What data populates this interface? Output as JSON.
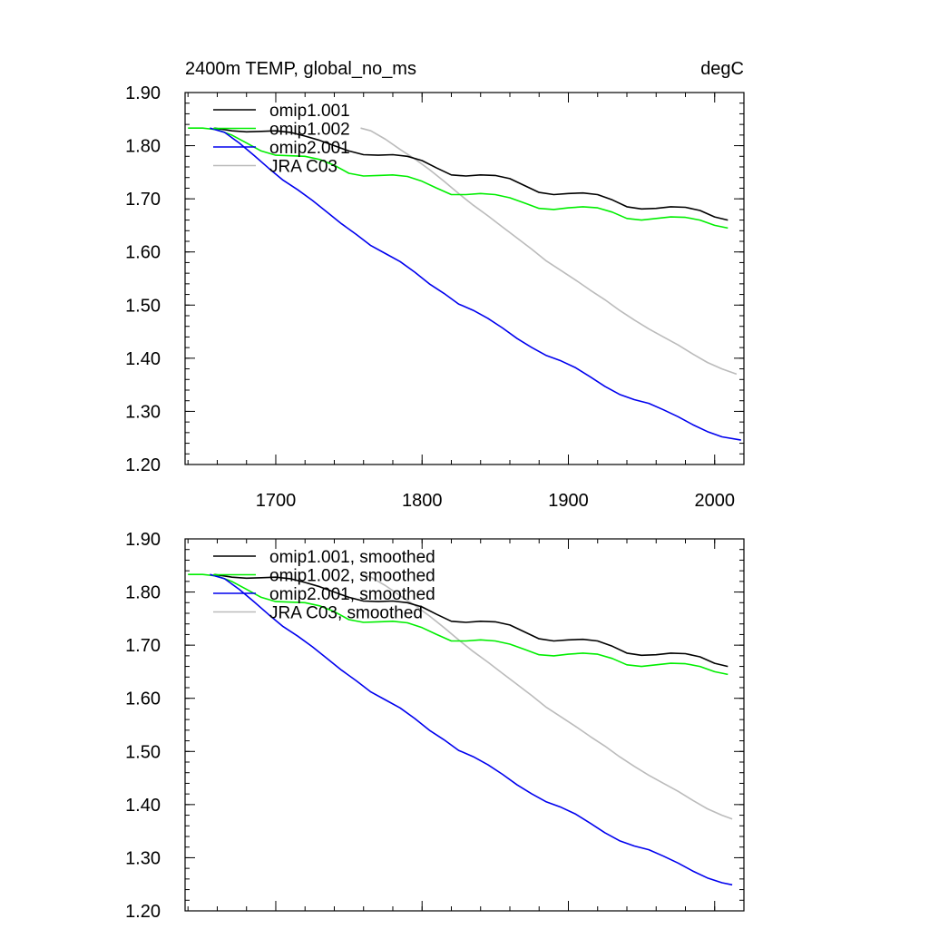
{
  "chart_data": [
    {
      "type": "line",
      "title_left": "2400m TEMP, global_no_ms",
      "title_right": "degC",
      "xlabel": "",
      "ylabel": "",
      "xlim": [
        1638,
        2020
      ],
      "ylim": [
        1.2,
        1.9
      ],
      "x_ticks": [
        1700,
        1800,
        1900,
        2000
      ],
      "x_tick_labels": [
        "1700",
        "1800",
        "1900",
        "2000"
      ],
      "y_ticks": [
        1.2,
        1.3,
        1.4,
        1.5,
        1.6,
        1.7,
        1.8,
        1.9
      ],
      "y_tick_labels": [
        "1.20",
        "1.30",
        "1.40",
        "1.50",
        "1.60",
        "1.70",
        "1.80",
        "1.90"
      ],
      "legend_position": "top-left",
      "series": [
        {
          "name": "omip1.001",
          "color": "#000000",
          "x": [
            1658,
            1670,
            1680,
            1690,
            1700,
            1710,
            1720,
            1730,
            1740,
            1750,
            1760,
            1770,
            1780,
            1790,
            1800,
            1810,
            1820,
            1830,
            1840,
            1850,
            1860,
            1870,
            1880,
            1890,
            1900,
            1910,
            1920,
            1930,
            1940,
            1950,
            1960,
            1970,
            1980,
            1990,
            2000,
            2009
          ],
          "y": [
            1.833,
            1.828,
            1.826,
            1.827,
            1.828,
            1.825,
            1.818,
            1.81,
            1.8,
            1.79,
            1.783,
            1.782,
            1.783,
            1.78,
            1.772,
            1.758,
            1.745,
            1.743,
            1.745,
            1.744,
            1.738,
            1.725,
            1.712,
            1.708,
            1.71,
            1.711,
            1.708,
            1.698,
            1.685,
            1.681,
            1.682,
            1.685,
            1.684,
            1.678,
            1.666,
            1.66
          ]
        },
        {
          "name": "omip1.002",
          "color": "#00ee00",
          "x": [
            1640,
            1650,
            1660,
            1670,
            1680,
            1690,
            1700,
            1710,
            1720,
            1730,
            1740,
            1750,
            1760,
            1770,
            1780,
            1790,
            1800,
            1810,
            1820,
            1830,
            1840,
            1850,
            1860,
            1870,
            1880,
            1890,
            1900,
            1910,
            1920,
            1930,
            1940,
            1950,
            1960,
            1970,
            1980,
            1990,
            2000,
            2009
          ],
          "y": [
            1.833,
            1.833,
            1.83,
            1.82,
            1.805,
            1.79,
            1.782,
            1.781,
            1.78,
            1.774,
            1.763,
            1.748,
            1.743,
            1.744,
            1.745,
            1.742,
            1.733,
            1.72,
            1.708,
            1.708,
            1.71,
            1.708,
            1.702,
            1.692,
            1.682,
            1.68,
            1.683,
            1.685,
            1.683,
            1.675,
            1.663,
            1.66,
            1.663,
            1.666,
            1.665,
            1.66,
            1.65,
            1.645
          ]
        },
        {
          "name": "omip2.001",
          "color": "#0000ee",
          "x": [
            1655,
            1665,
            1675,
            1685,
            1695,
            1705,
            1715,
            1725,
            1735,
            1745,
            1755,
            1765,
            1775,
            1785,
            1795,
            1805,
            1815,
            1825,
            1835,
            1845,
            1855,
            1865,
            1875,
            1885,
            1895,
            1905,
            1915,
            1925,
            1935,
            1945,
            1955,
            1965,
            1975,
            1985,
            1995,
            2005,
            2018
          ],
          "y": [
            1.833,
            1.825,
            1.805,
            1.782,
            1.758,
            1.735,
            1.717,
            1.697,
            1.675,
            1.653,
            1.633,
            1.612,
            1.597,
            1.582,
            1.562,
            1.54,
            1.522,
            1.502,
            1.49,
            1.475,
            1.457,
            1.437,
            1.42,
            1.405,
            1.395,
            1.382,
            1.365,
            1.347,
            1.332,
            1.322,
            1.315,
            1.303,
            1.29,
            1.275,
            1.262,
            1.252,
            1.246
          ]
        },
        {
          "name": "JRA C03",
          "color": "#bbbbbb",
          "x": [
            1758,
            1765,
            1775,
            1785,
            1795,
            1805,
            1815,
            1825,
            1835,
            1845,
            1855,
            1865,
            1875,
            1885,
            1895,
            1905,
            1915,
            1925,
            1935,
            1945,
            1955,
            1965,
            1975,
            1985,
            1995,
            2005,
            2015
          ],
          "y": [
            1.833,
            1.828,
            1.812,
            1.793,
            1.775,
            1.755,
            1.733,
            1.71,
            1.688,
            1.668,
            1.647,
            1.626,
            1.605,
            1.583,
            1.565,
            1.547,
            1.528,
            1.51,
            1.49,
            1.472,
            1.455,
            1.44,
            1.425,
            1.408,
            1.392,
            1.38,
            1.37
          ]
        }
      ]
    },
    {
      "type": "line",
      "title_left": "",
      "title_right": "",
      "xlabel": "",
      "ylabel": "",
      "xlim": [
        1638,
        2020
      ],
      "ylim": [
        1.2,
        1.9
      ],
      "x_ticks": [
        1700,
        1800,
        1900,
        2000
      ],
      "x_tick_labels": [],
      "y_ticks": [
        1.2,
        1.3,
        1.4,
        1.5,
        1.6,
        1.7,
        1.8,
        1.9
      ],
      "y_tick_labels": [
        "1.20",
        "1.30",
        "1.40",
        "1.50",
        "1.60",
        "1.70",
        "1.80",
        "1.90"
      ],
      "legend_position": "top-left",
      "series": [
        {
          "name": "omip1.001, smoothed",
          "color": "#000000",
          "x": [
            1658,
            1670,
            1680,
            1690,
            1700,
            1710,
            1720,
            1730,
            1740,
            1750,
            1760,
            1770,
            1780,
            1790,
            1800,
            1810,
            1820,
            1830,
            1840,
            1850,
            1860,
            1870,
            1880,
            1890,
            1900,
            1910,
            1920,
            1930,
            1940,
            1950,
            1960,
            1970,
            1980,
            1990,
            2000,
            2009
          ],
          "y": [
            1.833,
            1.828,
            1.826,
            1.827,
            1.828,
            1.825,
            1.818,
            1.81,
            1.8,
            1.79,
            1.783,
            1.782,
            1.783,
            1.78,
            1.772,
            1.758,
            1.745,
            1.743,
            1.745,
            1.744,
            1.738,
            1.725,
            1.712,
            1.708,
            1.71,
            1.711,
            1.708,
            1.698,
            1.685,
            1.681,
            1.682,
            1.685,
            1.684,
            1.678,
            1.666,
            1.66
          ]
        },
        {
          "name": "omip1.002, smoothed",
          "color": "#00ee00",
          "x": [
            1640,
            1650,
            1660,
            1670,
            1680,
            1690,
            1700,
            1710,
            1720,
            1730,
            1740,
            1750,
            1760,
            1770,
            1780,
            1790,
            1800,
            1810,
            1820,
            1830,
            1840,
            1850,
            1860,
            1870,
            1880,
            1890,
            1900,
            1910,
            1920,
            1930,
            1940,
            1950,
            1960,
            1970,
            1980,
            1990,
            2000,
            2009
          ],
          "y": [
            1.833,
            1.833,
            1.83,
            1.82,
            1.805,
            1.79,
            1.782,
            1.781,
            1.78,
            1.774,
            1.763,
            1.748,
            1.743,
            1.744,
            1.745,
            1.742,
            1.733,
            1.72,
            1.708,
            1.708,
            1.71,
            1.708,
            1.702,
            1.692,
            1.682,
            1.68,
            1.683,
            1.685,
            1.683,
            1.675,
            1.663,
            1.66,
            1.663,
            1.666,
            1.665,
            1.66,
            1.65,
            1.645
          ]
        },
        {
          "name": "omip2.001, smoothed",
          "color": "#0000ee",
          "x": [
            1655,
            1665,
            1675,
            1685,
            1695,
            1705,
            1715,
            1725,
            1735,
            1745,
            1755,
            1765,
            1775,
            1785,
            1795,
            1805,
            1815,
            1825,
            1835,
            1845,
            1855,
            1865,
            1875,
            1885,
            1895,
            1905,
            1915,
            1925,
            1935,
            1945,
            1955,
            1965,
            1975,
            1985,
            1995,
            2005,
            2012
          ],
          "y": [
            1.833,
            1.825,
            1.805,
            1.782,
            1.758,
            1.735,
            1.717,
            1.697,
            1.675,
            1.653,
            1.633,
            1.612,
            1.597,
            1.582,
            1.562,
            1.54,
            1.522,
            1.502,
            1.49,
            1.475,
            1.457,
            1.437,
            1.42,
            1.405,
            1.395,
            1.382,
            1.365,
            1.347,
            1.332,
            1.322,
            1.315,
            1.303,
            1.29,
            1.275,
            1.262,
            1.253,
            1.249
          ]
        },
        {
          "name": "JRA C03, smoothed",
          "color": "#bbbbbb",
          "x": [
            1758,
            1765,
            1775,
            1785,
            1795,
            1805,
            1815,
            1825,
            1835,
            1845,
            1855,
            1865,
            1875,
            1885,
            1895,
            1905,
            1915,
            1925,
            1935,
            1945,
            1955,
            1965,
            1975,
            1985,
            1995,
            2005,
            2012
          ],
          "y": [
            1.833,
            1.828,
            1.812,
            1.793,
            1.775,
            1.755,
            1.733,
            1.71,
            1.688,
            1.668,
            1.647,
            1.626,
            1.605,
            1.583,
            1.565,
            1.547,
            1.528,
            1.51,
            1.49,
            1.472,
            1.455,
            1.44,
            1.425,
            1.408,
            1.392,
            1.38,
            1.373
          ]
        }
      ]
    }
  ]
}
